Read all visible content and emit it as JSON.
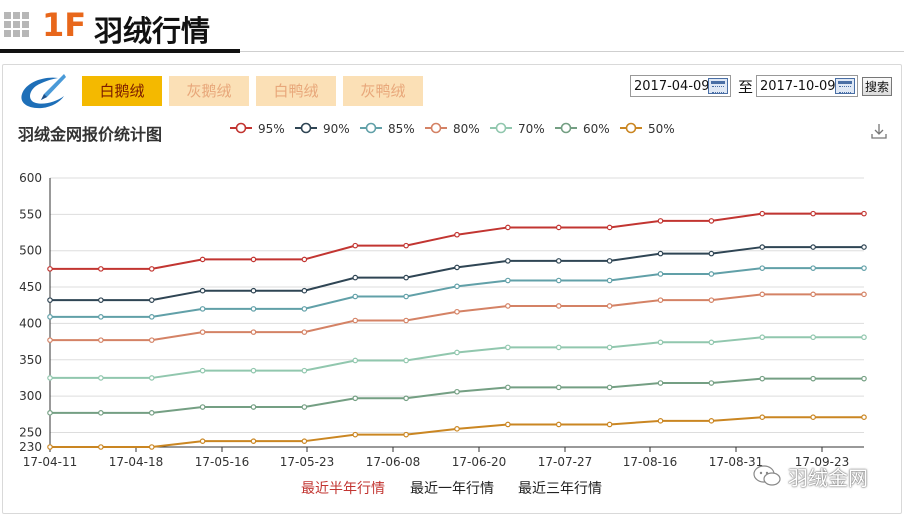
{
  "header": {
    "section_no": "1F",
    "title": "羽绒行情"
  },
  "tabs": [
    {
      "label": "白鹅绒",
      "active": true
    },
    {
      "label": "灰鹅绒",
      "active": false
    },
    {
      "label": "白鸭绒",
      "active": false
    },
    {
      "label": "灰鸭绒",
      "active": false
    }
  ],
  "date_range": {
    "start": "2017-04-09",
    "separator": "至",
    "end": "2017-10-09",
    "search_label": "搜索"
  },
  "periods": [
    {
      "label": "最近半年行情",
      "active": true
    },
    {
      "label": "最近一年行情",
      "active": false
    },
    {
      "label": "最近三年行情",
      "active": false
    }
  ],
  "watermark": "羽绒金网",
  "colors": {
    "95%": "#c23531",
    "90%": "#2f4554",
    "85%": "#61a0a8",
    "80%": "#d48265",
    "70%": "#91c7ae",
    "60%": "#749f83",
    "50%": "#ca8622",
    "tab_active": "#f4b900",
    "tab_inactive": "#fbe0b6",
    "section_no": "#e8671b"
  },
  "chart_data": {
    "type": "line",
    "title": "羽绒金网报价统计图",
    "legend_position": "top",
    "grid": true,
    "ylim": [
      230,
      600
    ],
    "y_ticks": [
      230,
      250,
      300,
      350,
      400,
      450,
      500,
      550,
      600
    ],
    "x_tick_labels": [
      "17-04-11",
      "17-04-18",
      "17-05-16",
      "17-05-23",
      "17-06-08",
      "17-06-20",
      "17-07-27",
      "17-08-16",
      "17-08-31",
      "17-09-23"
    ],
    "x_tick_labels_note_index_8_partially_hidden": true,
    "series": [
      {
        "name": "95%",
        "values": [
          475,
          475,
          475,
          488,
          488,
          488,
          507,
          507,
          522,
          532,
          532,
          532,
          541,
          541,
          551,
          551,
          551
        ]
      },
      {
        "name": "90%",
        "values": [
          432,
          432,
          432,
          445,
          445,
          445,
          463,
          463,
          477,
          486,
          486,
          486,
          496,
          496,
          505,
          505,
          505
        ]
      },
      {
        "name": "85%",
        "values": [
          409,
          409,
          409,
          420,
          420,
          420,
          437,
          437,
          451,
          459,
          459,
          459,
          468,
          468,
          476,
          476,
          476
        ]
      },
      {
        "name": "80%",
        "values": [
          377,
          377,
          377,
          388,
          388,
          388,
          404,
          404,
          416,
          424,
          424,
          424,
          432,
          432,
          440,
          440,
          440
        ]
      },
      {
        "name": "70%",
        "values": [
          325,
          325,
          325,
          335,
          335,
          335,
          349,
          349,
          360,
          367,
          367,
          367,
          374,
          374,
          381,
          381,
          381
        ]
      },
      {
        "name": "60%",
        "values": [
          277,
          277,
          277,
          285,
          285,
          285,
          297,
          297,
          306,
          312,
          312,
          312,
          318,
          318,
          324,
          324,
          324
        ]
      },
      {
        "name": "50%",
        "values": [
          230,
          230,
          230,
          238,
          238,
          238,
          247,
          247,
          255,
          261,
          261,
          261,
          266,
          266,
          271,
          271,
          271
        ]
      }
    ]
  }
}
